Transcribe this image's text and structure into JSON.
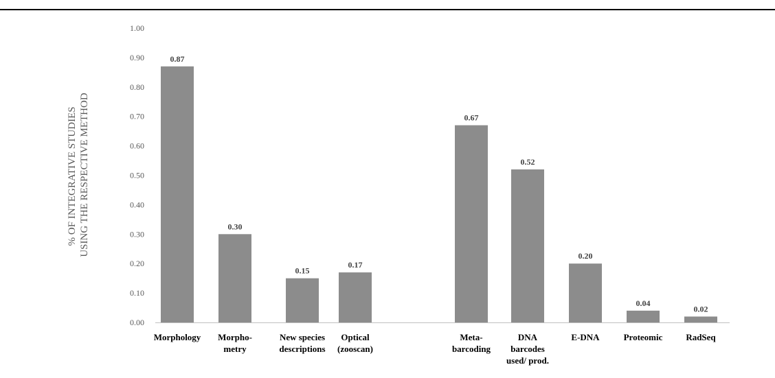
{
  "chart_data": {
    "type": "bar",
    "categories": [
      [
        "Morphology"
      ],
      [
        "Morpho-",
        "metry"
      ],
      [
        "New species",
        "descriptions"
      ],
      [
        "Optical",
        "(zooscan)"
      ],
      [
        "Meta-",
        "barcoding"
      ],
      [
        "DNA",
        "barcodes",
        "used/ prod."
      ],
      [
        "E-DNA"
      ],
      [
        "Proteomic"
      ],
      [
        "RadSeq"
      ]
    ],
    "values": [
      0.87,
      0.3,
      0.15,
      0.17,
      0.67,
      0.52,
      0.2,
      0.04,
      0.02
    ],
    "value_labels": [
      "0.87",
      "0.30",
      "0.15",
      "0.17",
      "0.67",
      "0.52",
      "0.20",
      "0.04",
      "0.02"
    ],
    "yticks": [
      "0.00",
      "0.10",
      "0.20",
      "0.30",
      "0.40",
      "0.50",
      "0.60",
      "0.70",
      "0.80",
      "0.90",
      "1.00"
    ],
    "ylim": [
      0,
      1
    ],
    "ylabel": [
      "% OF INTEGRATIVE STUDIES",
      "USING THE RESPECTIVE METHOD"
    ],
    "xlabel": "",
    "title": "",
    "grid": false,
    "bar_color": "#8c8c8c",
    "axis_color": "#bfbfbf"
  }
}
